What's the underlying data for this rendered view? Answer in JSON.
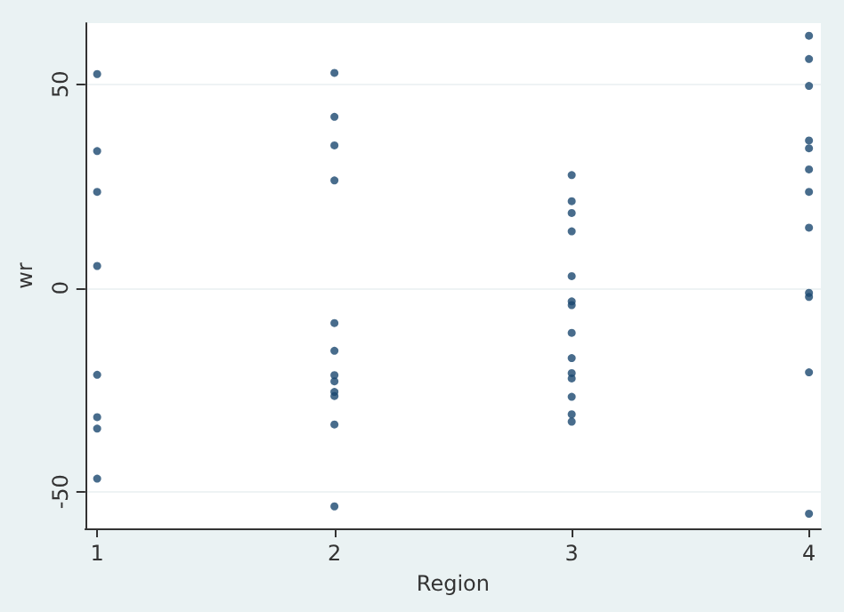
{
  "chart_data": {
    "type": "scatter",
    "xlabel": "Region",
    "ylabel": "wr",
    "x": [
      1,
      1,
      1,
      1,
      1,
      1,
      1,
      1,
      2,
      2,
      2,
      2,
      2,
      2,
      2,
      2,
      2,
      2,
      2,
      2,
      3,
      3,
      3,
      3,
      3,
      3,
      3,
      3,
      3,
      3,
      3,
      3,
      3,
      3,
      4,
      4,
      4,
      4,
      4,
      4,
      4,
      4,
      4,
      4,
      4,
      4
    ],
    "values": [
      52.5,
      33.6,
      23.6,
      5.4,
      -21.3,
      -31.7,
      -34.5,
      -46.8,
      52.8,
      42,
      35,
      26.4,
      -8.6,
      -15.4,
      -21.4,
      -22.9,
      -25.5,
      -26.5,
      -33.5,
      -53.6,
      27.7,
      21.3,
      18.4,
      13.9,
      2.9,
      -3.3,
      -4.2,
      -11,
      -17.2,
      -20.9,
      -22.2,
      -26.7,
      -31,
      -32.8,
      61.9,
      56.2,
      49.6,
      36.2,
      34.3,
      29.1,
      23.6,
      14.8,
      -1.2,
      -2.2,
      -20.7,
      -55.4
    ],
    "color": "#1a476f",
    "marker": "circle",
    "xlim": [
      0.95,
      4.05
    ],
    "xticks": [
      1,
      2,
      3,
      4
    ],
    "ylim": [
      -59,
      65
    ],
    "yticks": [
      -50,
      0,
      50
    ],
    "grid": "y"
  }
}
